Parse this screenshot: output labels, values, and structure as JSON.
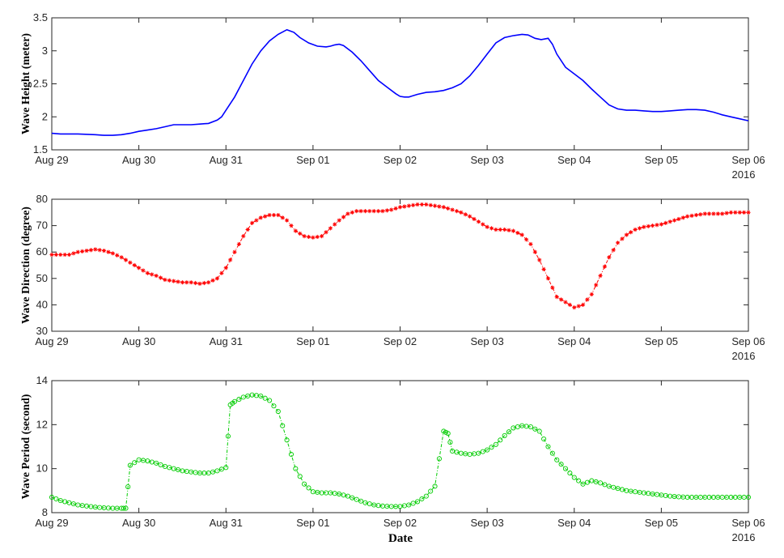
{
  "figure": {
    "xlabel": "Date",
    "year_label": "2016"
  },
  "chart_data": [
    {
      "type": "line",
      "ylabel": "Wave Height (meter)",
      "ylim": [
        1.5,
        3.5
      ],
      "yticks": [
        "1.5",
        "2",
        "2.5",
        "3",
        "3.5"
      ],
      "ytick_values": [
        1.5,
        2,
        2.5,
        3,
        3.5
      ],
      "xlim": [
        0,
        8
      ],
      "xticks": [
        "Aug 29",
        "Aug 30",
        "Aug 31",
        "Sep 01",
        "Sep 02",
        "Sep 03",
        "Sep 04",
        "Sep 05",
        "Sep 06"
      ],
      "xtick_values": [
        0,
        1,
        2,
        3,
        4,
        5,
        6,
        7,
        8
      ],
      "year_label": "2016",
      "color": "#0000ff",
      "marker": "none",
      "line_style": "solid",
      "series": [
        {
          "x": [
            0,
            0.1,
            0.3,
            0.5,
            0.6,
            0.7,
            0.8,
            0.9,
            1.0,
            1.1,
            1.2,
            1.3,
            1.4,
            1.5,
            1.6,
            1.7,
            1.8,
            1.9,
            1.95,
            2.0,
            2.1,
            2.2,
            2.3,
            2.4,
            2.5,
            2.6,
            2.7,
            2.78,
            2.85,
            2.95,
            3.05,
            3.15,
            3.2,
            3.25,
            3.3,
            3.35,
            3.45,
            3.55,
            3.65,
            3.75,
            3.85,
            3.95,
            4.0,
            4.05,
            4.1,
            4.2,
            4.3,
            4.4,
            4.5,
            4.6,
            4.7,
            4.8,
            4.9,
            5.0,
            5.1,
            5.2,
            5.3,
            5.4,
            5.47,
            5.55,
            5.62,
            5.7,
            5.75,
            5.8,
            5.9,
            6.0,
            6.1,
            6.2,
            6.3,
            6.4,
            6.5,
            6.6,
            6.7,
            6.8,
            6.9,
            7.0,
            7.1,
            7.2,
            7.3,
            7.4,
            7.5,
            7.6,
            7.7,
            7.8,
            7.9,
            8.0
          ],
          "y": [
            1.75,
            1.74,
            1.74,
            1.73,
            1.72,
            1.72,
            1.73,
            1.75,
            1.78,
            1.8,
            1.82,
            1.85,
            1.88,
            1.88,
            1.88,
            1.89,
            1.9,
            1.95,
            2.0,
            2.1,
            2.3,
            2.55,
            2.8,
            3.0,
            3.15,
            3.25,
            3.32,
            3.28,
            3.2,
            3.12,
            3.07,
            3.06,
            3.07,
            3.09,
            3.1,
            3.08,
            2.98,
            2.85,
            2.7,
            2.55,
            2.45,
            2.35,
            2.31,
            2.3,
            2.3,
            2.34,
            2.37,
            2.38,
            2.4,
            2.44,
            2.5,
            2.62,
            2.78,
            2.95,
            3.12,
            3.2,
            3.23,
            3.25,
            3.24,
            3.19,
            3.17,
            3.19,
            3.1,
            2.95,
            2.75,
            2.65,
            2.55,
            2.42,
            2.3,
            2.18,
            2.12,
            2.1,
            2.1,
            2.09,
            2.08,
            2.08,
            2.09,
            2.1,
            2.11,
            2.11,
            2.1,
            2.07,
            2.03,
            2.0,
            1.97,
            1.94
          ]
        }
      ]
    },
    {
      "type": "line",
      "ylabel": "Wave Direction (degree)",
      "ylim": [
        30,
        80
      ],
      "yticks": [
        "30",
        "40",
        "50",
        "60",
        "70",
        "80"
      ],
      "ytick_values": [
        30,
        40,
        50,
        60,
        70,
        80
      ],
      "xlim": [
        0,
        8
      ],
      "xticks": [
        "Aug 29",
        "Aug 30",
        "Aug 31",
        "Sep 01",
        "Sep 02",
        "Sep 03",
        "Sep 04",
        "Sep 05",
        "Sep 06"
      ],
      "xtick_values": [
        0,
        1,
        2,
        3,
        4,
        5,
        6,
        7,
        8
      ],
      "year_label": "2016",
      "color": "#ff0000",
      "marker": "asterisk",
      "line_style": "dash-dot",
      "series": [
        {
          "x": [
            0,
            0.1,
            0.2,
            0.3,
            0.4,
            0.5,
            0.6,
            0.7,
            0.8,
            0.9,
            1.0,
            1.1,
            1.2,
            1.3,
            1.4,
            1.5,
            1.6,
            1.7,
            1.8,
            1.9,
            2.0,
            2.1,
            2.2,
            2.3,
            2.4,
            2.5,
            2.6,
            2.7,
            2.8,
            2.9,
            3.0,
            3.1,
            3.2,
            3.3,
            3.4,
            3.5,
            3.6,
            3.7,
            3.8,
            3.9,
            4.0,
            4.1,
            4.2,
            4.3,
            4.4,
            4.5,
            4.6,
            4.7,
            4.8,
            4.9,
            5.0,
            5.1,
            5.2,
            5.3,
            5.4,
            5.5,
            5.6,
            5.7,
            5.8,
            5.9,
            6.0,
            6.1,
            6.2,
            6.3,
            6.4,
            6.5,
            6.6,
            6.7,
            6.8,
            6.9,
            7.0,
            7.1,
            7.2,
            7.3,
            7.4,
            7.5,
            7.6,
            7.7,
            7.8,
            7.9,
            8.0
          ],
          "y": [
            59,
            59,
            59,
            60,
            60.5,
            61,
            60.5,
            59.5,
            58,
            56,
            54,
            52,
            51,
            49.5,
            49,
            48.5,
            48.5,
            48,
            48.5,
            50,
            54,
            60,
            66,
            71,
            73,
            74,
            74,
            72,
            68,
            66,
            65.5,
            66,
            69,
            72,
            74.5,
            75.5,
            75.5,
            75.5,
            75.5,
            76,
            77,
            77.5,
            78,
            78,
            77.5,
            77,
            76,
            75,
            73.5,
            71.5,
            69.5,
            68.5,
            68.5,
            68,
            66.5,
            63,
            57,
            50,
            43,
            41,
            39,
            40,
            44,
            51,
            58,
            63.5,
            66.5,
            68.5,
            69.5,
            70,
            70.5,
            71.5,
            72.5,
            73.5,
            74,
            74.5,
            74.5,
            74.5,
            75,
            75,
            75
          ]
        }
      ]
    },
    {
      "type": "line",
      "ylabel": "Wave Period (second)",
      "xlabel": "Date",
      "ylim": [
        8,
        14
      ],
      "yticks": [
        "8",
        "10",
        "12",
        "14"
      ],
      "ytick_values": [
        8,
        10,
        12,
        14
      ],
      "xlim": [
        0,
        8
      ],
      "xticks": [
        "Aug 29",
        "Aug 30",
        "Aug 31",
        "Sep 01",
        "Sep 02",
        "Sep 03",
        "Sep 04",
        "Sep 05",
        "Sep 06"
      ],
      "xtick_values": [
        0,
        1,
        2,
        3,
        4,
        5,
        6,
        7,
        8
      ],
      "year_label": "2016",
      "color": "#00cc00",
      "marker": "circle",
      "line_style": "dash-dot",
      "series": [
        {
          "x": [
            0,
            0.1,
            0.2,
            0.3,
            0.4,
            0.5,
            0.6,
            0.7,
            0.8,
            0.85,
            0.9,
            1.0,
            1.1,
            1.2,
            1.3,
            1.4,
            1.5,
            1.6,
            1.7,
            1.8,
            1.9,
            2.0,
            2.05,
            2.1,
            2.2,
            2.3,
            2.4,
            2.5,
            2.6,
            2.7,
            2.8,
            2.9,
            3.0,
            3.1,
            3.2,
            3.3,
            3.4,
            3.5,
            3.6,
            3.7,
            3.8,
            3.9,
            4.0,
            4.1,
            4.2,
            4.3,
            4.4,
            4.5,
            4.55,
            4.6,
            4.7,
            4.8,
            4.9,
            5.0,
            5.1,
            5.2,
            5.3,
            5.4,
            5.5,
            5.6,
            5.7,
            5.8,
            5.9,
            6.0,
            6.1,
            6.2,
            6.3,
            6.4,
            6.5,
            6.6,
            6.7,
            6.8,
            6.9,
            7.0,
            7.1,
            7.2,
            7.3,
            7.4,
            7.5,
            7.6,
            7.7,
            7.8,
            7.9,
            8.0
          ],
          "y": [
            8.7,
            8.55,
            8.45,
            8.35,
            8.3,
            8.25,
            8.22,
            8.2,
            8.2,
            8.2,
            10.15,
            10.4,
            10.35,
            10.25,
            10.1,
            10.0,
            9.9,
            9.85,
            9.8,
            9.8,
            9.9,
            10.05,
            12.9,
            13.05,
            13.25,
            13.35,
            13.3,
            13.1,
            12.6,
            11.3,
            10.0,
            9.3,
            8.95,
            8.9,
            8.9,
            8.85,
            8.75,
            8.6,
            8.45,
            8.35,
            8.3,
            8.28,
            8.28,
            8.35,
            8.5,
            8.75,
            9.2,
            11.7,
            11.6,
            10.8,
            10.7,
            10.65,
            10.7,
            10.85,
            11.1,
            11.5,
            11.85,
            11.95,
            11.9,
            11.7,
            11.0,
            10.4,
            10.0,
            9.6,
            9.3,
            9.45,
            9.35,
            9.2,
            9.1,
            9.0,
            8.95,
            8.9,
            8.85,
            8.8,
            8.75,
            8.72,
            8.7,
            8.7,
            8.7,
            8.7,
            8.7,
            8.7,
            8.7,
            8.7
          ]
        }
      ]
    }
  ]
}
